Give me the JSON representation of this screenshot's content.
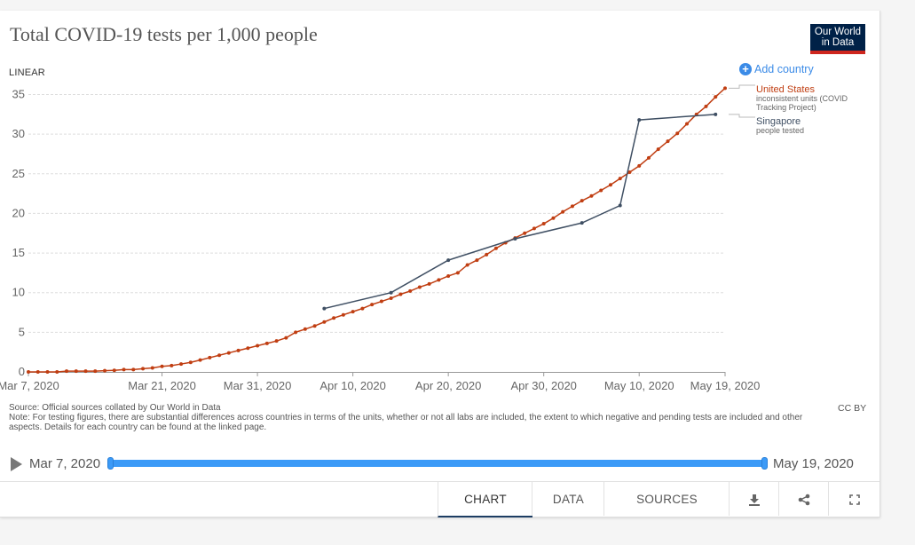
{
  "title": "Total COVID-19 tests per 1,000 people",
  "logo": {
    "line1": "Our World",
    "line2": "in Data"
  },
  "scale_label": "LINEAR",
  "add_country": "Add country",
  "colors": {
    "us": "#c03e12",
    "sg": "#3f4f63",
    "accent": "#3b8be7",
    "slider": "#3b9af7"
  },
  "legend": [
    {
      "name": "United States",
      "note1": "inconsistent units (COVID",
      "note2": "Tracking Project)"
    },
    {
      "name": "Singapore",
      "note1": "people tested",
      "note2": ""
    }
  ],
  "chart_data": {
    "type": "line",
    "title": "Total COVID-19 tests per 1,000 people",
    "xlabel": "",
    "ylabel": "",
    "x_start": "Mar 7, 2020",
    "x_end": "May 19, 2020",
    "x_range_days": [
      0,
      73
    ],
    "ylim": [
      0,
      35
    ],
    "y_ticks": [
      0,
      5,
      10,
      15,
      20,
      25,
      30,
      35
    ],
    "x_ticks": [
      {
        "day": 0,
        "label": "Mar 7, 2020"
      },
      {
        "day": 14,
        "label": "Mar 21, 2020"
      },
      {
        "day": 24,
        "label": "Mar 31, 2020"
      },
      {
        "day": 34,
        "label": "Apr 10, 2020"
      },
      {
        "day": 44,
        "label": "Apr 20, 2020"
      },
      {
        "day": 54,
        "label": "Apr 30, 2020"
      },
      {
        "day": 64,
        "label": "May 10, 2020"
      },
      {
        "day": 73,
        "label": "May 19, 2020"
      }
    ],
    "grid": true,
    "series": [
      {
        "name": "United States",
        "color": "#c03e12",
        "markers": true,
        "x": [
          0,
          1,
          2,
          3,
          4,
          5,
          6,
          7,
          8,
          9,
          10,
          11,
          12,
          13,
          14,
          15,
          16,
          17,
          18,
          19,
          20,
          21,
          22,
          23,
          24,
          25,
          26,
          27,
          28,
          29,
          30,
          31,
          32,
          33,
          34,
          35,
          36,
          37,
          38,
          39,
          40,
          41,
          42,
          43,
          44,
          45,
          46,
          47,
          48,
          49,
          50,
          51,
          52,
          53,
          54,
          55,
          56,
          57,
          58,
          59,
          60,
          61,
          62,
          63,
          64,
          65,
          66,
          67,
          68,
          69,
          70,
          71,
          72,
          73
        ],
        "values": [
          0.0,
          0.0,
          0.0,
          0.0,
          0.1,
          0.1,
          0.1,
          0.1,
          0.15,
          0.2,
          0.3,
          0.3,
          0.4,
          0.5,
          0.7,
          0.8,
          1.0,
          1.2,
          1.5,
          1.8,
          2.1,
          2.4,
          2.7,
          3.0,
          3.3,
          3.6,
          3.9,
          4.3,
          5.0,
          5.4,
          5.8,
          6.3,
          6.8,
          7.2,
          7.6,
          8.0,
          8.5,
          8.9,
          9.3,
          9.8,
          10.2,
          10.7,
          11.1,
          11.6,
          12.1,
          12.5,
          13.5,
          14.1,
          14.8,
          15.6,
          16.3,
          16.9,
          17.5,
          18.1,
          18.7,
          19.4,
          20.2,
          20.9,
          21.6,
          22.2,
          22.9,
          23.6,
          24.4,
          25.2,
          26.0,
          27.0,
          28.1,
          29.1,
          30.1,
          31.3,
          32.5,
          33.5,
          34.7,
          35.8
        ]
      },
      {
        "name": "Singapore",
        "color": "#3f4f63",
        "markers": "sparse",
        "x": [
          31,
          38,
          44,
          51,
          58,
          62,
          64,
          72
        ],
        "values": [
          8.0,
          10.0,
          14.1,
          16.8,
          18.8,
          21.0,
          31.8,
          32.5
        ]
      }
    ]
  },
  "footer": {
    "source": "Source: Official sources collated by Our World in Data",
    "note": "Note: For testing figures, there are substantial differences across countries in terms of the units, whether or not all labs are included, the extent to which negative and pending tests are included and other aspects. Details for each country can be found at the linked page.",
    "license": "CC BY"
  },
  "timeline": {
    "start": "Mar 7, 2020",
    "end": "May 19, 2020"
  },
  "tabs": [
    {
      "label": "CHART",
      "active": true
    },
    {
      "label": "DATA",
      "active": false
    },
    {
      "label": "SOURCES",
      "active": false
    }
  ],
  "actions": {
    "download_icon": "download-icon",
    "share_icon": "share-icon",
    "fullscreen_icon": "fullscreen-icon"
  }
}
